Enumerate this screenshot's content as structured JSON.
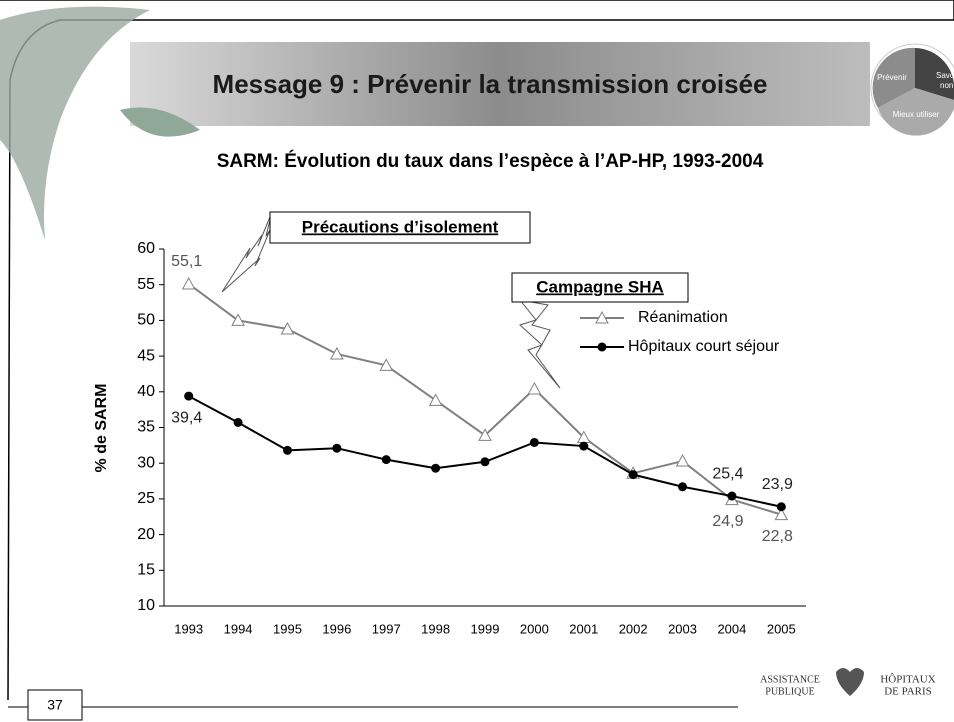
{
  "slide": {
    "title": "Message 9 : Prévenir la transmission croisée",
    "number": "37",
    "badge": [
      "Prévenir",
      "Savoir di",
      "non",
      "Mieux utiliser"
    ],
    "logo": [
      "ASSISTANCE",
      "PUBLIQUE",
      "HÔPITAUX",
      "DE PARIS"
    ]
  },
  "chart_data": {
    "type": "line",
    "title": "SARM: Évolution du taux dans l’espèce à l’AP-HP, 1993-2004",
    "ylabel": "% de SARM",
    "annotations": [
      "Précautions d’isolement",
      "Campagne SHA"
    ],
    "categories": [
      "1993",
      "1994",
      "1995",
      "1996",
      "1997",
      "1998",
      "1999",
      "2000",
      "2001",
      "2002",
      "2003",
      "2004",
      "2005"
    ],
    "ylim": [
      10,
      60
    ],
    "yticks": [
      10,
      15,
      20,
      25,
      30,
      35,
      40,
      45,
      50,
      55,
      60
    ],
    "grid": false,
    "series": [
      {
        "name": "Réanimation",
        "color": "#808080",
        "marker": "triangle",
        "values": [
          55.1,
          50,
          48.8,
          45.3,
          43.7,
          38.8,
          33.9,
          40.4,
          33.6,
          28.6,
          30.3,
          24.9,
          22.8
        ],
        "value_labels": [
          "55,1",
          null,
          null,
          null,
          null,
          null,
          null,
          null,
          null,
          null,
          null,
          "24,9",
          "22,8"
        ]
      },
      {
        "name": "Hôpitaux court séjour",
        "color": "#000000",
        "marker": "circle",
        "values": [
          39.4,
          35.7,
          31.8,
          32.1,
          30.5,
          29.3,
          30.2,
          32.9,
          32.4,
          28.4,
          26.7,
          25.4,
          23.9
        ],
        "value_labels": [
          "39,4",
          null,
          null,
          null,
          null,
          null,
          null,
          null,
          null,
          null,
          null,
          "25,4",
          "23,9"
        ]
      }
    ]
  }
}
